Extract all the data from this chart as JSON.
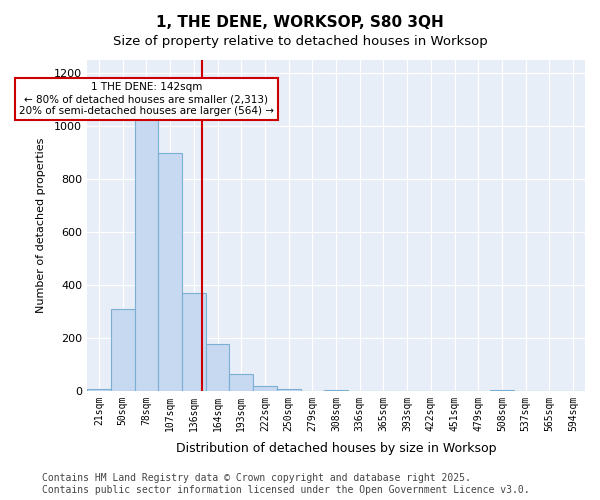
{
  "title": "1, THE DENE, WORKSOP, S80 3QH",
  "subtitle": "Size of property relative to detached houses in Worksop",
  "xlabel": "Distribution of detached houses by size in Worksop",
  "ylabel": "Number of detached properties",
  "categories": [
    "21sqm",
    "50sqm",
    "78sqm",
    "107sqm",
    "136sqm",
    "164sqm",
    "193sqm",
    "222sqm",
    "250sqm",
    "279sqm",
    "308sqm",
    "336sqm",
    "365sqm",
    "393sqm",
    "422sqm",
    "451sqm",
    "479sqm",
    "508sqm",
    "537sqm",
    "565sqm",
    "594sqm"
  ],
  "values": [
    5,
    310,
    1040,
    900,
    370,
    175,
    65,
    18,
    5,
    1,
    4,
    0,
    0,
    0,
    0,
    0,
    0,
    3,
    0,
    0,
    0
  ],
  "bar_color": "#c6d9f0",
  "bar_edge_color": "#7bafd4",
  "vline_color": "#cc0000",
  "annotation_text": "1 THE DENE: 142sqm\n← 80% of detached houses are smaller (2,313)\n20% of semi-detached houses are larger (564) →",
  "ylim": [
    0,
    1250
  ],
  "yticks": [
    0,
    200,
    400,
    600,
    800,
    1000,
    1200
  ],
  "background_color": "#e8eef7",
  "footer": "Contains HM Land Registry data © Crown copyright and database right 2025.\nContains public sector information licensed under the Open Government Licence v3.0.",
  "title_fontsize": 11,
  "subtitle_fontsize": 9.5,
  "footer_fontsize": 7
}
